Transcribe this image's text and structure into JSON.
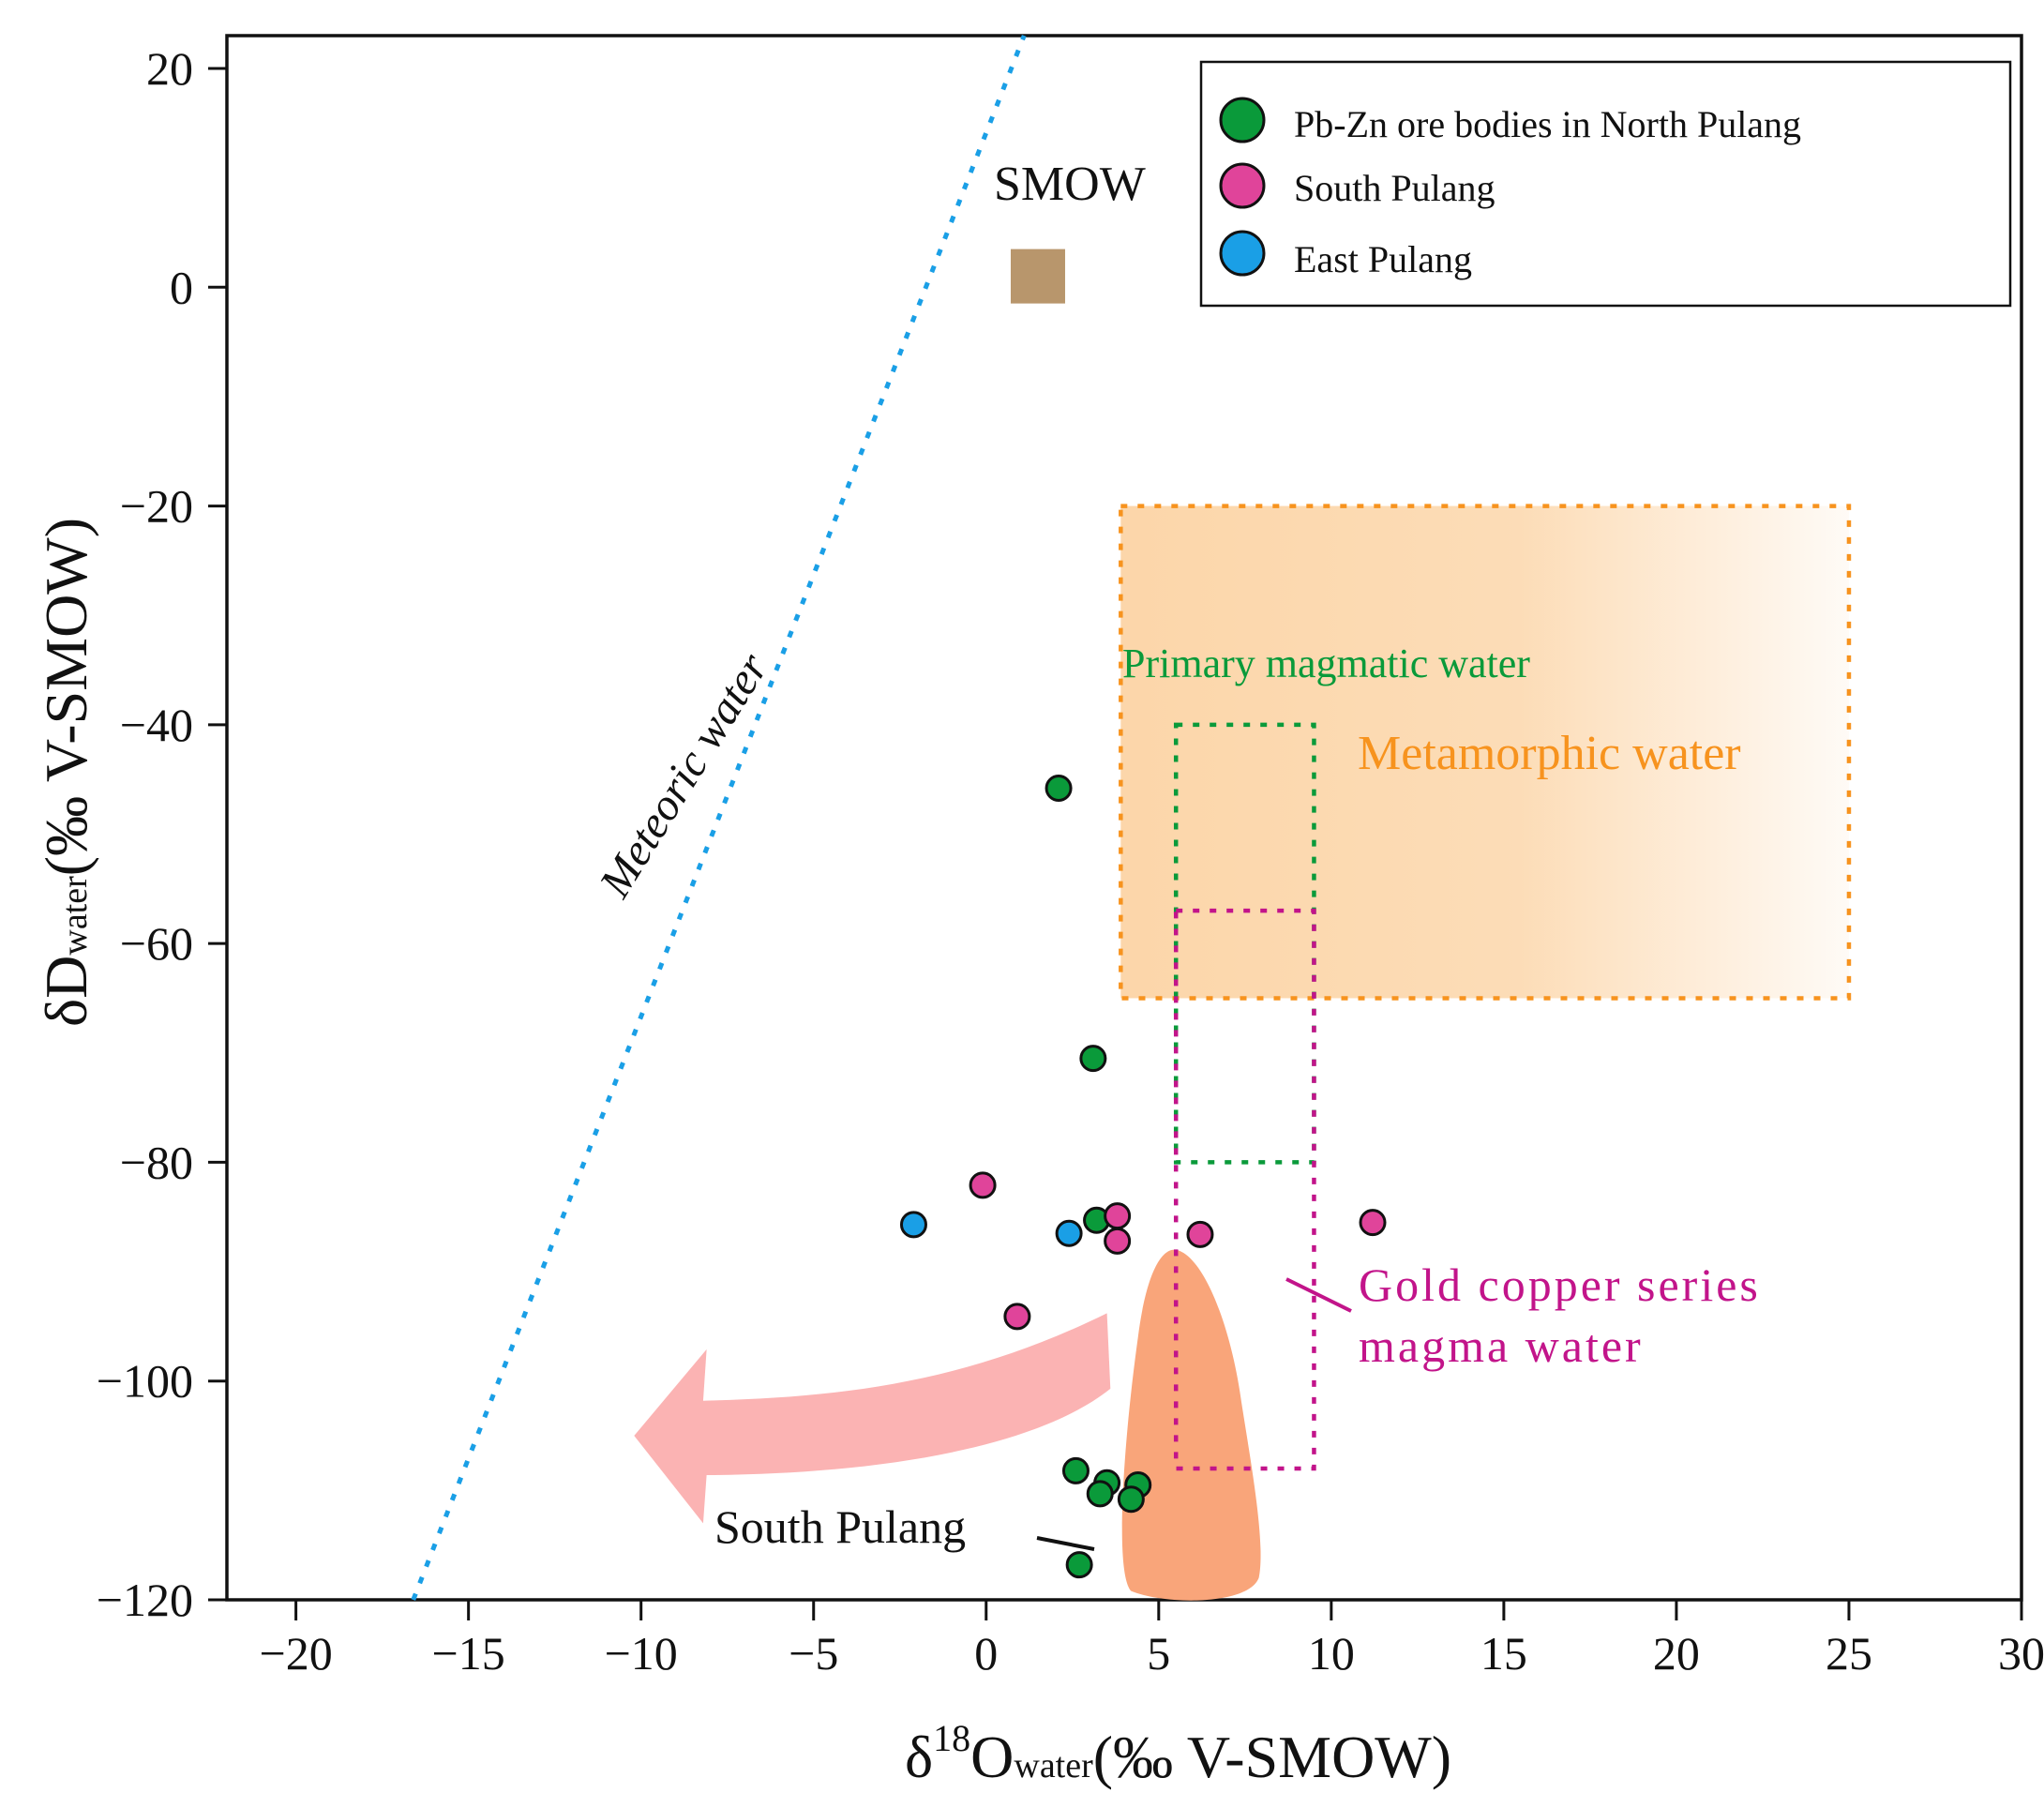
{
  "chart_data": {
    "type": "scatter",
    "title": "",
    "xlabel": {
      "main": "δ",
      "sup": "18",
      "base": "O",
      "sub": "water",
      "rest": "(‰ V-SMOW)"
    },
    "ylabel": {
      "main": "δD",
      "sub": "water",
      "rest": "(‰  V-SMOW)"
    },
    "xlim": [
      -22,
      30
    ],
    "ylim": [
      -120,
      23
    ],
    "xticks": [
      -20,
      -15,
      -10,
      -5,
      0,
      5,
      10,
      15,
      20,
      25,
      30
    ],
    "xtick_labels": [
      "−20",
      "−15",
      "−10",
      "−5",
      "0",
      "5",
      "10",
      "15",
      "20",
      "25",
      "30"
    ],
    "yticks": [
      -120,
      -100,
      -80,
      -60,
      -40,
      -20,
      0,
      20
    ],
    "ytick_labels": [
      "−120",
      "−100",
      "−80",
      "−60",
      "−40",
      "−20",
      "0",
      "20"
    ],
    "grid": false,
    "legend_position": "top-right",
    "series": [
      {
        "name": "Pb-Zn ore bodies in North Pulang",
        "color": "#0a9a3a",
        "points": [
          {
            "x": 2.1,
            "y": -45.8
          },
          {
            "x": 3.1,
            "y": -70.5
          },
          {
            "x": 3.2,
            "y": -85.3
          },
          {
            "x": 2.6,
            "y": -108.2
          },
          {
            "x": 3.5,
            "y": -109.3
          },
          {
            "x": 3.3,
            "y": -110.3
          },
          {
            "x": 4.4,
            "y": -109.5
          },
          {
            "x": 4.2,
            "y": -110.8
          },
          {
            "x": 2.7,
            "y": -116.8
          }
        ]
      },
      {
        "name": "South Pulang",
        "color": "#e0449a",
        "points": [
          {
            "x": -0.1,
            "y": -82.1
          },
          {
            "x": 3.8,
            "y": -84.9
          },
          {
            "x": 3.8,
            "y": -87.2
          },
          {
            "x": 6.2,
            "y": -86.6
          },
          {
            "x": 11.2,
            "y": -85.5
          },
          {
            "x": 0.9,
            "y": -94.1
          }
        ]
      },
      {
        "name": "East Pulang",
        "color": "#1a9fe6",
        "points": [
          {
            "x": -2.1,
            "y": -85.7
          },
          {
            "x": 2.4,
            "y": -86.5
          }
        ]
      }
    ],
    "smow": {
      "label": "SMOW",
      "x": 1.5,
      "y": 1,
      "color": "#b8966c"
    },
    "meteoric_line": {
      "label": "Meteoric water",
      "color": "#1a9fe6",
      "x0": -16.6,
      "y0": -120,
      "x1": 1.1,
      "y1": 23
    },
    "regions": [
      {
        "name": "Metamorphic water",
        "label": "Metamorphic water",
        "color": "#f7931e",
        "x0": 3.9,
        "x1": 25.0,
        "y0": -65,
        "y1": -20
      },
      {
        "name": "Primary magmatic water",
        "label": "Primary magmatic water",
        "color": "#0a9a3a",
        "x0": 5.5,
        "x1": 9.5,
        "y0": -80,
        "y1": -40
      },
      {
        "name": "Gold copper series magma water",
        "label_lines": [
          "Gold copper series",
          "magma water"
        ],
        "color": "#c2148a",
        "x0": 5.5,
        "x1": 9.5,
        "y0": -108,
        "y1": -57
      }
    ],
    "south_pulang_field": {
      "label": "South Pulang",
      "color": "#f9a57a"
    },
    "trend_arrow": {
      "color": "#fbb3b3"
    }
  }
}
